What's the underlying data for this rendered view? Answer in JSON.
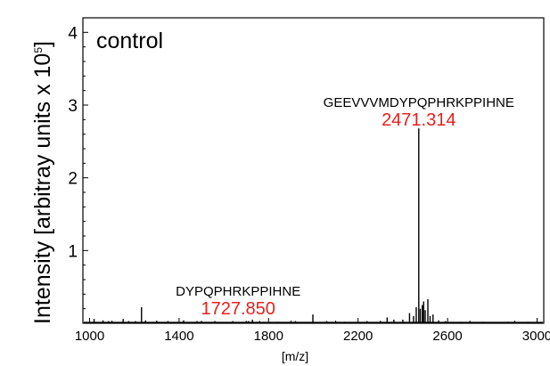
{
  "chart_data": {
    "type": "line",
    "title": "",
    "panel_label": "control",
    "xlabel": "[m/z]",
    "ylabel": "Intensity [arbitray units x 10",
    "ylabel_exponent": "5",
    "ylabel_suffix": "]",
    "xlim": [
      970,
      3030
    ],
    "ylim": [
      0,
      4.2
    ],
    "x_ticks": [
      1000,
      1400,
      1800,
      2200,
      2600,
      3000
    ],
    "x_tick_labels": [
      "1000",
      "1400",
      "1800",
      "2200",
      "2600",
      "3000"
    ],
    "y_ticks": [
      1,
      2,
      3,
      4
    ],
    "y_tick_labels": [
      "1",
      "2",
      "3",
      "4"
    ],
    "grid": false,
    "series": [
      {
        "color": "#000000",
        "peaks": [
          {
            "x": 1020,
            "y": 0.06
          },
          {
            "x": 1060,
            "y": 0.04
          },
          {
            "x": 1085,
            "y": 0.03
          },
          {
            "x": 1150,
            "y": 0.06
          },
          {
            "x": 1175,
            "y": 0.03
          },
          {
            "x": 1205,
            "y": 0.03
          },
          {
            "x": 1232,
            "y": 0.22
          },
          {
            "x": 1250,
            "y": 0.04
          },
          {
            "x": 1300,
            "y": 0.03
          },
          {
            "x": 1350,
            "y": 0.03
          },
          {
            "x": 1420,
            "y": 0.04
          },
          {
            "x": 1480,
            "y": 0.03
          },
          {
            "x": 1560,
            "y": 0.03
          },
          {
            "x": 1640,
            "y": 0.03
          },
          {
            "x": 1710,
            "y": 0.03
          },
          {
            "x": 1727.85,
            "y": 0.05
          },
          {
            "x": 1760,
            "y": 0.03
          },
          {
            "x": 1840,
            "y": 0.02
          },
          {
            "x": 1920,
            "y": 0.03
          },
          {
            "x": 1998,
            "y": 0.12
          },
          {
            "x": 2060,
            "y": 0.03
          },
          {
            "x": 2140,
            "y": 0.02
          },
          {
            "x": 2240,
            "y": 0.03
          },
          {
            "x": 2330,
            "y": 0.08
          },
          {
            "x": 2360,
            "y": 0.05
          },
          {
            "x": 2400,
            "y": 0.05
          },
          {
            "x": 2430,
            "y": 0.14
          },
          {
            "x": 2448,
            "y": 0.1
          },
          {
            "x": 2460,
            "y": 0.22
          },
          {
            "x": 2471.314,
            "y": 2.68
          },
          {
            "x": 2478,
            "y": 0.2
          },
          {
            "x": 2487,
            "y": 0.25
          },
          {
            "x": 2493,
            "y": 0.3
          },
          {
            "x": 2500,
            "y": 0.18
          },
          {
            "x": 2512,
            "y": 0.33
          },
          {
            "x": 2522,
            "y": 0.1
          },
          {
            "x": 2535,
            "y": 0.12
          },
          {
            "x": 2560,
            "y": 0.04
          },
          {
            "x": 2590,
            "y": 0.03
          },
          {
            "x": 2660,
            "y": 0.02
          },
          {
            "x": 2760,
            "y": 0.02
          },
          {
            "x": 2870,
            "y": 0.02
          },
          {
            "x": 2960,
            "y": 0.02
          }
        ]
      }
    ],
    "annotations": [
      {
        "sequence": "GEEVVVMDYPQPHRKPPIHNE",
        "mass": "2471.314",
        "x": 2471.314
      },
      {
        "sequence": "DYPQPHRKPPIHNE",
        "mass": "1727.850",
        "x": 1727.85
      }
    ],
    "label_color": "#e8201c"
  }
}
